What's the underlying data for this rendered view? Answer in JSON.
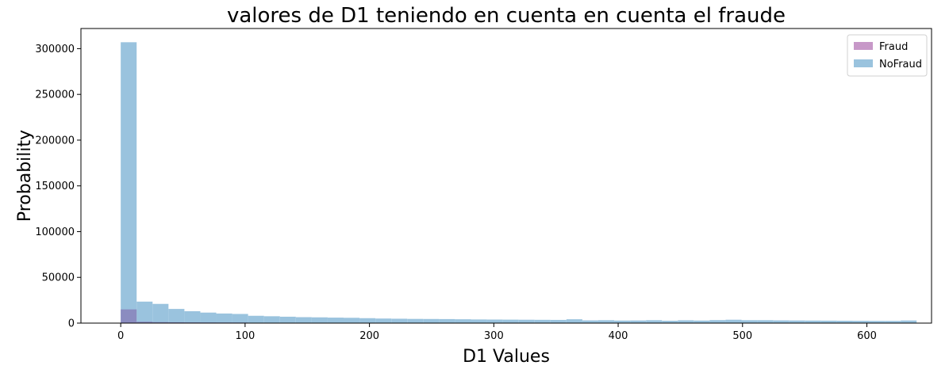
{
  "chart_data": {
    "type": "bar",
    "title": "valores de D1 teniendo en cuenta en cuenta el fraude",
    "xlabel": "D1 Values",
    "ylabel": "Probability",
    "xlim": [
      -32,
      652
    ],
    "ylim": [
      0,
      322000
    ],
    "xticks": [
      0,
      100,
      200,
      300,
      400,
      500,
      600
    ],
    "yticks": [
      0,
      50000,
      100000,
      150000,
      200000,
      250000,
      300000
    ],
    "grid": false,
    "legend_position": "top-right",
    "bin_width": 12.8,
    "series": [
      {
        "name": "Fraud",
        "color": "#c798c8",
        "opacity": 1,
        "bins_start": [
          0,
          12.8,
          25.6,
          38.4,
          51.2,
          64,
          76.8,
          89.6,
          102.4,
          115.2,
          128,
          140.8,
          153.6,
          166.4,
          179.2,
          192,
          204.8,
          217.6,
          230.4,
          243.2,
          256,
          268.8,
          281.6,
          294.4,
          307.2,
          320,
          332.8,
          345.6,
          358.4,
          371.2,
          384,
          396.8,
          409.6,
          422.4,
          435.2,
          448,
          460.8,
          473.6,
          486.4,
          499.2,
          512,
          524.8,
          537.6,
          550.4,
          563.2,
          576,
          588.8,
          601.6,
          614.4,
          627.2
        ],
        "values": [
          15000,
          1500,
          1100,
          900,
          800,
          700,
          650,
          600,
          300,
          250,
          220,
          200,
          190,
          180,
          170,
          160,
          150,
          140,
          130,
          120,
          110,
          105,
          100,
          95,
          90,
          85,
          80,
          78,
          76,
          74,
          72,
          70,
          68,
          66,
          64,
          62,
          60,
          58,
          56,
          54,
          52,
          50,
          48,
          46,
          44,
          42,
          40,
          38,
          36,
          34
        ]
      },
      {
        "name": "NoFraud",
        "color": "#9ac3de",
        "opacity": 1,
        "bins_start": [
          0,
          12.8,
          25.6,
          38.4,
          51.2,
          64,
          76.8,
          89.6,
          102.4,
          115.2,
          128,
          140.8,
          153.6,
          166.4,
          179.2,
          192,
          204.8,
          217.6,
          230.4,
          243.2,
          256,
          268.8,
          281.6,
          294.4,
          307.2,
          320,
          332.8,
          345.6,
          358.4,
          371.2,
          384,
          396.8,
          409.6,
          422.4,
          435.2,
          448,
          460.8,
          473.6,
          486.4,
          499.2,
          512,
          524.8,
          537.6,
          550.4,
          563.2,
          576,
          588.8,
          601.6,
          614.4,
          627.2
        ],
        "values": [
          307000,
          23500,
          21000,
          15500,
          13000,
          11500,
          10500,
          10000,
          8000,
          7500,
          7000,
          6500,
          6300,
          6000,
          5800,
          5400,
          5000,
          4800,
          4600,
          4500,
          4400,
          4200,
          4000,
          3900,
          3800,
          3700,
          3600,
          3500,
          4200,
          3000,
          3200,
          2800,
          2900,
          3200,
          2600,
          3100,
          2800,
          3300,
          3700,
          3200,
          3200,
          3000,
          2900,
          2800,
          2700,
          2600,
          2500,
          2400,
          2400,
          2900
        ]
      }
    ],
    "overlap_color": "#8b8cc0"
  }
}
